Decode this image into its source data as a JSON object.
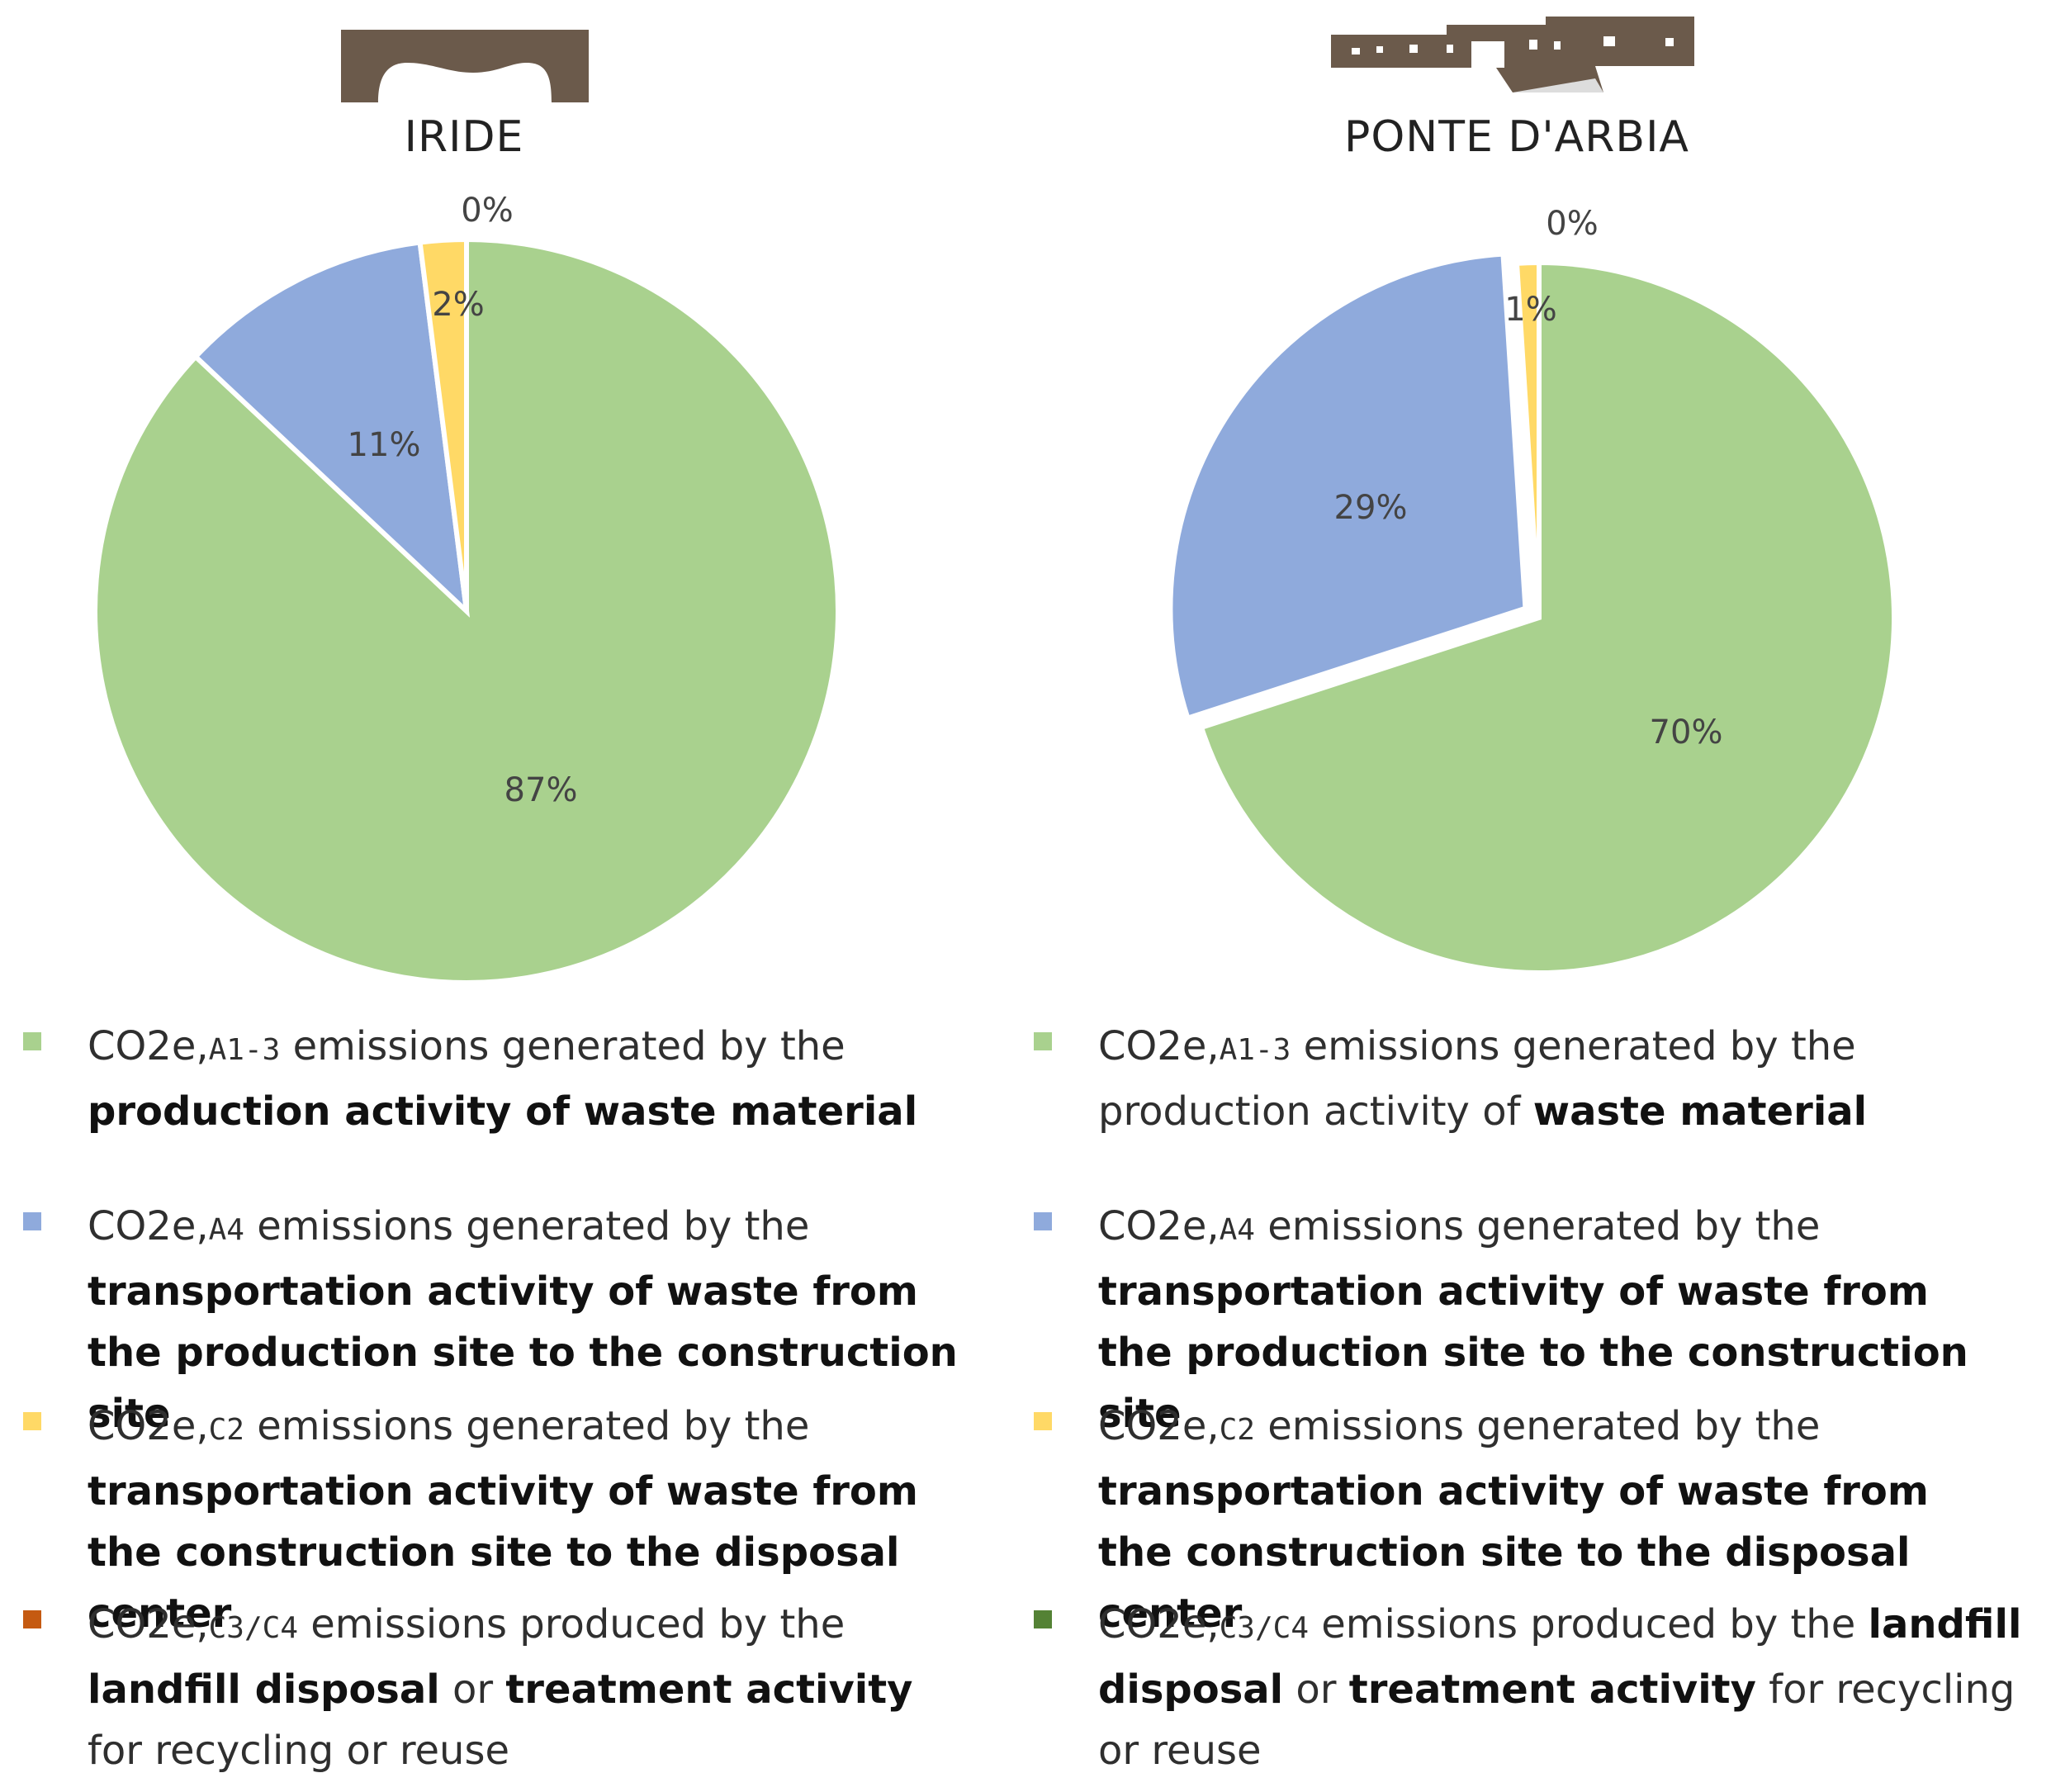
{
  "chart_data": [
    {
      "type": "pie",
      "title": "IRIDE",
      "categories": [
        "A1-3 production of waste material",
        "A4 transport production site to construction site",
        "C2 transport construction site to disposal center",
        "C3/C4 landfill disposal or treatment"
      ],
      "values": [
        87,
        11,
        2,
        0
      ],
      "labels": [
        "87%",
        "11%",
        "2%",
        "0%"
      ],
      "colors": [
        "#a9d18e",
        "#8faadc",
        "#ffd966",
        "#c55a11"
      ],
      "exploded_index": 2
    },
    {
      "type": "pie",
      "title": "PONTE D'ARBIA",
      "categories": [
        "A1-3 production of waste material",
        "A4 transport production site to construction site",
        "C2 transport construction site to disposal center",
        "C3/C4 landfill disposal or treatment"
      ],
      "values": [
        70,
        29,
        1,
        0
      ],
      "labels": [
        "70%",
        "29%",
        "1%",
        "0%"
      ],
      "colors": [
        "#a9d18e",
        "#8faadc",
        "#ffd966",
        "#548235"
      ],
      "exploded_index": 1
    }
  ],
  "left": {
    "title": "IRIDE",
    "legend": [
      {
        "co2": "CO2e,",
        "code": "A1-3",
        "text": "emissions generated by the",
        "bold": "production activity of waste material",
        "color": "#a9d18e"
      },
      {
        "co2": "CO2e,",
        "code": "A4",
        "text": "emissions generated by the",
        "bold": "transportation activity of waste from the production site to the construction site",
        "color": "#8faadc"
      },
      {
        "co2": "CO2e,",
        "code": "C2",
        "text": "emissions generated by the",
        "bold": "transportation activity of waste from the construction site to the disposal center",
        "color": "#ffd966"
      },
      {
        "co2": "CO2e,",
        "code": "C3/C4",
        "text": "emissions produced by the",
        "bold": "landfill disposal",
        "text2": "or",
        "bold2": "treatment activity",
        "text3": "for recycling or reuse",
        "color": "#c55a11"
      }
    ]
  },
  "right": {
    "title": "PONTE D'ARBIA",
    "legend": [
      {
        "co2": "CO2e,",
        "code": "A1-3",
        "text": "emissions generated by the production activity of",
        "bold": "waste material",
        "color": "#a9d18e"
      },
      {
        "co2": "CO2e,",
        "code": "A4",
        "text": "emissions generated by the",
        "bold": "transportation activity of waste from the production site to the construction site",
        "color": "#8faadc"
      },
      {
        "co2": "CO2e,",
        "code": "C2",
        "text": "emissions generated by the",
        "bold": "transportation activity of waste from the construction site to the disposal center",
        "color": "#ffd966"
      },
      {
        "co2": "CO2e,",
        "code": "C3/C4",
        "text": "emissions produced by the",
        "bold": "landfill disposal",
        "text2": "or",
        "bold2": "treatment activity",
        "text3": "for recycling or reuse",
        "color": "#548235"
      }
    ]
  }
}
